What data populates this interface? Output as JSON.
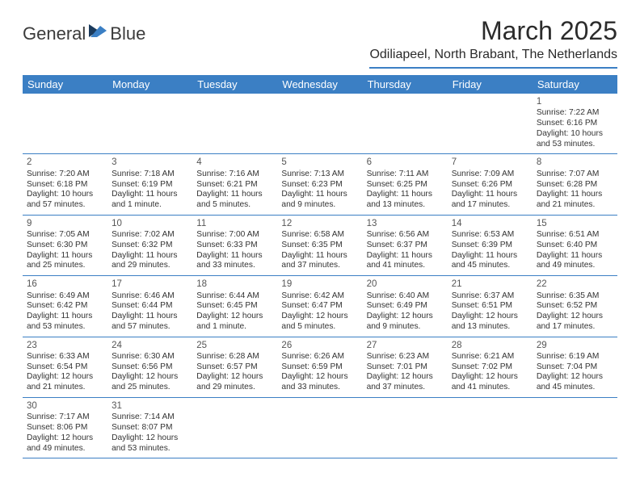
{
  "brand": {
    "name_part1": "General",
    "name_part2": "Blue",
    "text_color": "#3b3b3b",
    "accent_color": "#3b7fc4",
    "dark_color": "#1a3a5c"
  },
  "header": {
    "month_title": "March 2025",
    "location": "Odiliapeel, North Brabant, The Netherlands"
  },
  "day_names": [
    "Sunday",
    "Monday",
    "Tuesday",
    "Wednesday",
    "Thursday",
    "Friday",
    "Saturday"
  ],
  "colors": {
    "header_bg": "#3b7fc4",
    "header_text": "#ffffff",
    "border": "#3b7fc4",
    "text": "#333333"
  },
  "weeks": [
    [
      null,
      null,
      null,
      null,
      null,
      null,
      {
        "n": "1",
        "sunrise": "Sunrise: 7:22 AM",
        "sunset": "Sunset: 6:16 PM",
        "daylight": "Daylight: 10 hours and 53 minutes."
      }
    ],
    [
      {
        "n": "2",
        "sunrise": "Sunrise: 7:20 AM",
        "sunset": "Sunset: 6:18 PM",
        "daylight": "Daylight: 10 hours and 57 minutes."
      },
      {
        "n": "3",
        "sunrise": "Sunrise: 7:18 AM",
        "sunset": "Sunset: 6:19 PM",
        "daylight": "Daylight: 11 hours and 1 minute."
      },
      {
        "n": "4",
        "sunrise": "Sunrise: 7:16 AM",
        "sunset": "Sunset: 6:21 PM",
        "daylight": "Daylight: 11 hours and 5 minutes."
      },
      {
        "n": "5",
        "sunrise": "Sunrise: 7:13 AM",
        "sunset": "Sunset: 6:23 PM",
        "daylight": "Daylight: 11 hours and 9 minutes."
      },
      {
        "n": "6",
        "sunrise": "Sunrise: 7:11 AM",
        "sunset": "Sunset: 6:25 PM",
        "daylight": "Daylight: 11 hours and 13 minutes."
      },
      {
        "n": "7",
        "sunrise": "Sunrise: 7:09 AM",
        "sunset": "Sunset: 6:26 PM",
        "daylight": "Daylight: 11 hours and 17 minutes."
      },
      {
        "n": "8",
        "sunrise": "Sunrise: 7:07 AM",
        "sunset": "Sunset: 6:28 PM",
        "daylight": "Daylight: 11 hours and 21 minutes."
      }
    ],
    [
      {
        "n": "9",
        "sunrise": "Sunrise: 7:05 AM",
        "sunset": "Sunset: 6:30 PM",
        "daylight": "Daylight: 11 hours and 25 minutes."
      },
      {
        "n": "10",
        "sunrise": "Sunrise: 7:02 AM",
        "sunset": "Sunset: 6:32 PM",
        "daylight": "Daylight: 11 hours and 29 minutes."
      },
      {
        "n": "11",
        "sunrise": "Sunrise: 7:00 AM",
        "sunset": "Sunset: 6:33 PM",
        "daylight": "Daylight: 11 hours and 33 minutes."
      },
      {
        "n": "12",
        "sunrise": "Sunrise: 6:58 AM",
        "sunset": "Sunset: 6:35 PM",
        "daylight": "Daylight: 11 hours and 37 minutes."
      },
      {
        "n": "13",
        "sunrise": "Sunrise: 6:56 AM",
        "sunset": "Sunset: 6:37 PM",
        "daylight": "Daylight: 11 hours and 41 minutes."
      },
      {
        "n": "14",
        "sunrise": "Sunrise: 6:53 AM",
        "sunset": "Sunset: 6:39 PM",
        "daylight": "Daylight: 11 hours and 45 minutes."
      },
      {
        "n": "15",
        "sunrise": "Sunrise: 6:51 AM",
        "sunset": "Sunset: 6:40 PM",
        "daylight": "Daylight: 11 hours and 49 minutes."
      }
    ],
    [
      {
        "n": "16",
        "sunrise": "Sunrise: 6:49 AM",
        "sunset": "Sunset: 6:42 PM",
        "daylight": "Daylight: 11 hours and 53 minutes."
      },
      {
        "n": "17",
        "sunrise": "Sunrise: 6:46 AM",
        "sunset": "Sunset: 6:44 PM",
        "daylight": "Daylight: 11 hours and 57 minutes."
      },
      {
        "n": "18",
        "sunrise": "Sunrise: 6:44 AM",
        "sunset": "Sunset: 6:45 PM",
        "daylight": "Daylight: 12 hours and 1 minute."
      },
      {
        "n": "19",
        "sunrise": "Sunrise: 6:42 AM",
        "sunset": "Sunset: 6:47 PM",
        "daylight": "Daylight: 12 hours and 5 minutes."
      },
      {
        "n": "20",
        "sunrise": "Sunrise: 6:40 AM",
        "sunset": "Sunset: 6:49 PM",
        "daylight": "Daylight: 12 hours and 9 minutes."
      },
      {
        "n": "21",
        "sunrise": "Sunrise: 6:37 AM",
        "sunset": "Sunset: 6:51 PM",
        "daylight": "Daylight: 12 hours and 13 minutes."
      },
      {
        "n": "22",
        "sunrise": "Sunrise: 6:35 AM",
        "sunset": "Sunset: 6:52 PM",
        "daylight": "Daylight: 12 hours and 17 minutes."
      }
    ],
    [
      {
        "n": "23",
        "sunrise": "Sunrise: 6:33 AM",
        "sunset": "Sunset: 6:54 PM",
        "daylight": "Daylight: 12 hours and 21 minutes."
      },
      {
        "n": "24",
        "sunrise": "Sunrise: 6:30 AM",
        "sunset": "Sunset: 6:56 PM",
        "daylight": "Daylight: 12 hours and 25 minutes."
      },
      {
        "n": "25",
        "sunrise": "Sunrise: 6:28 AM",
        "sunset": "Sunset: 6:57 PM",
        "daylight": "Daylight: 12 hours and 29 minutes."
      },
      {
        "n": "26",
        "sunrise": "Sunrise: 6:26 AM",
        "sunset": "Sunset: 6:59 PM",
        "daylight": "Daylight: 12 hours and 33 minutes."
      },
      {
        "n": "27",
        "sunrise": "Sunrise: 6:23 AM",
        "sunset": "Sunset: 7:01 PM",
        "daylight": "Daylight: 12 hours and 37 minutes."
      },
      {
        "n": "28",
        "sunrise": "Sunrise: 6:21 AM",
        "sunset": "Sunset: 7:02 PM",
        "daylight": "Daylight: 12 hours and 41 minutes."
      },
      {
        "n": "29",
        "sunrise": "Sunrise: 6:19 AM",
        "sunset": "Sunset: 7:04 PM",
        "daylight": "Daylight: 12 hours and 45 minutes."
      }
    ],
    [
      {
        "n": "30",
        "sunrise": "Sunrise: 7:17 AM",
        "sunset": "Sunset: 8:06 PM",
        "daylight": "Daylight: 12 hours and 49 minutes."
      },
      {
        "n": "31",
        "sunrise": "Sunrise: 7:14 AM",
        "sunset": "Sunset: 8:07 PM",
        "daylight": "Daylight: 12 hours and 53 minutes."
      },
      null,
      null,
      null,
      null,
      null
    ]
  ]
}
